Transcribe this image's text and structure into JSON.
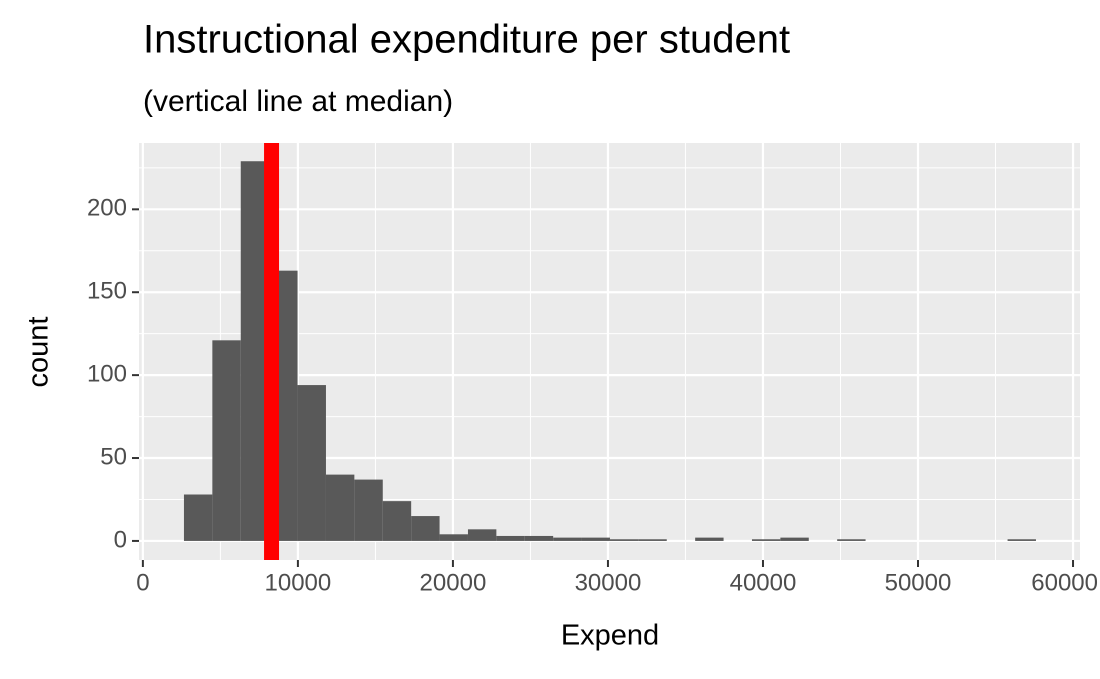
{
  "chart_data": {
    "type": "histogram",
    "title": "Instructional expenditure per student",
    "subtitle": "(vertical line at median)",
    "x_label": "Expend",
    "y_label": "count",
    "bins": [
      2650,
      4482,
      6314,
      8146,
      9978,
      11810,
      13642,
      15474,
      17306,
      19138,
      20970,
      22802,
      24634,
      26466,
      28298,
      30130,
      31962,
      33794,
      35626,
      37458,
      39290,
      41122,
      42954,
      44786,
      46618,
      48450,
      50282,
      52114,
      53946,
      55778,
      57610
    ],
    "values": [
      28,
      121,
      229,
      163,
      94,
      40,
      37,
      24,
      15,
      4,
      7,
      3,
      3,
      2,
      2,
      1,
      1,
      0,
      2,
      0,
      1,
      2,
      0,
      1,
      0,
      0,
      0,
      0,
      0,
      1
    ],
    "color": "#595959",
    "median": 8300,
    "median_color": "#ff0000",
    "xlim": [
      -250,
      60450
    ],
    "ylim": [
      -11.5,
      240
    ],
    "xticks": [
      0,
      10000,
      20000,
      30000,
      40000,
      50000,
      60000
    ],
    "yticks": [
      0,
      50,
      100,
      150,
      200
    ],
    "x_minor_grid": [
      5000,
      15000,
      25000,
      35000,
      45000,
      55000
    ],
    "y_minor_grid": [
      25,
      75,
      125,
      175,
      225
    ],
    "grid": true
  }
}
